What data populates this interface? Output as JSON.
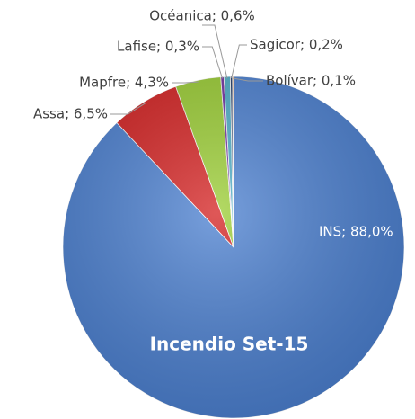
{
  "chart_data": {
    "type": "pie",
    "title": "Incendio Set-15",
    "values": [
      88.0,
      6.5,
      4.3,
      0.3,
      0.6,
      0.2,
      0.1
    ],
    "value_labels": [
      "INS; 88,0%",
      "Assa; 6,5%",
      "Mapfre; 4,3%",
      "Lafise; 0,3%",
      "Océanica; 0,6%",
      "Sagicor; 0,2%",
      "Bolívar; 0,1%"
    ],
    "colors": [
      "#4a7fd0",
      "#d42020",
      "#9acd32",
      "#7030a0",
      "#4bacc6",
      "#1f3864",
      "#f79646"
    ]
  }
}
